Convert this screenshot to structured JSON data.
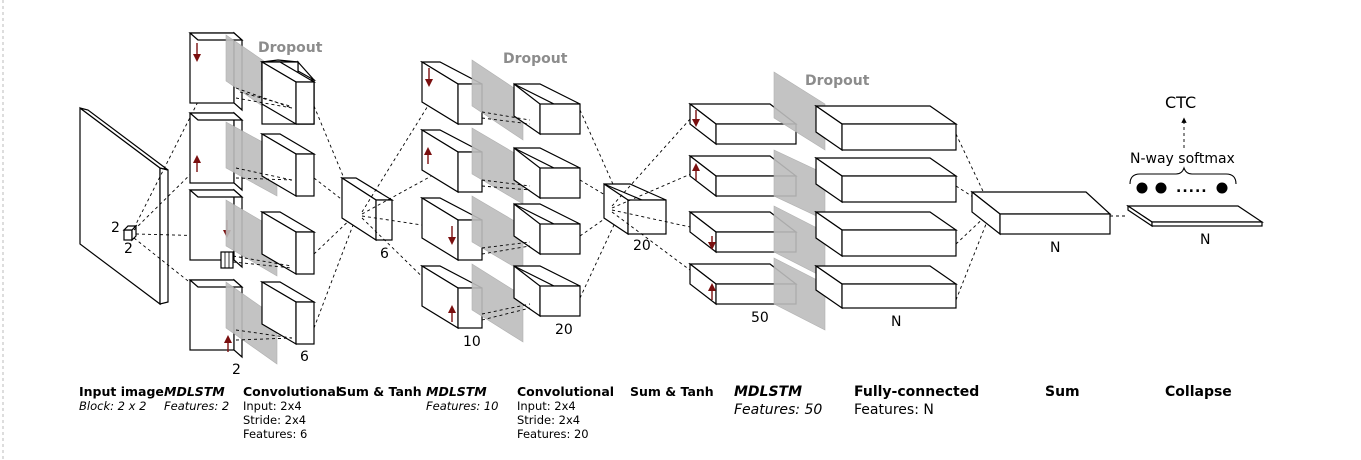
{
  "dropout_label": "Dropout",
  "dims": {
    "block_w": "2",
    "block_h": "2",
    "mdlstm1_out": "2",
    "conv1_out": "6",
    "sum1_out": "6",
    "mdlstm2_out": "10",
    "conv2_out": "20",
    "sum2_out": "20",
    "mdlstm3_out": "50",
    "fc_out": "N",
    "sum3_out": "N",
    "collapse_out": "N"
  },
  "output": {
    "ctc": "CTC",
    "softmax": "N-way softmax",
    "dots": "....."
  },
  "captions": [
    {
      "title": "Input image",
      "lines": [
        "Block: 2 x 2"
      ]
    },
    {
      "title": "MDLSTM",
      "lines": [
        "Features: 2"
      ]
    },
    {
      "title": "Convolutional",
      "lines": [
        "Input: 2x4",
        "Stride: 2x4",
        "Features: 6"
      ]
    },
    {
      "title": "Sum & Tanh",
      "lines": []
    },
    {
      "title": "MDLSTM",
      "lines": [
        "Features: 10"
      ]
    },
    {
      "title": "Convolutional",
      "lines": [
        "Input: 2x4",
        "Stride: 2x4",
        "Features: 20"
      ]
    },
    {
      "title": "Sum & Tanh",
      "lines": []
    },
    {
      "title": "MDLSTM",
      "lines": [
        "Features: 50"
      ]
    },
    {
      "title": "Fully-connected",
      "lines": [
        "Features: N"
      ]
    },
    {
      "title": "Sum",
      "lines": []
    },
    {
      "title": "Collapse",
      "lines": []
    }
  ],
  "colors": {
    "arrow": "#7a0f0f",
    "dropout_panel": "#bdbdbd",
    "dropout_text": "#8c8c8c"
  }
}
